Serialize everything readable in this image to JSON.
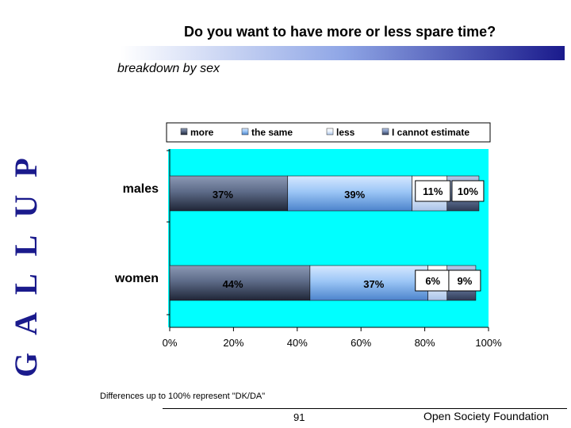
{
  "branding": {
    "vertical_logo": "GALLUP"
  },
  "slide": {
    "title": "Do you want to have more or less spare time?",
    "subtitle": "breakdown by sex",
    "note": "Differences up to 100% represent \"DK/DA\"",
    "page_number": "91",
    "organization": "Open Society Foundation"
  },
  "colors": {
    "plot_background": "#00ffff",
    "accent": "#1a1a8c",
    "more": "#3d4a63",
    "the_same": "#7fb2ec",
    "less": "#d8e6fb",
    "cannot_estimate": "#4d5f80"
  },
  "chart_data": {
    "type": "bar",
    "orientation": "horizontal",
    "stacked": true,
    "title": "Do you want to have more or less spare time?",
    "subtitle": "breakdown by sex",
    "categories": [
      "males",
      "women"
    ],
    "series": [
      {
        "name": "more",
        "values": [
          37,
          44
        ],
        "labels": [
          "37%",
          "44%"
        ]
      },
      {
        "name": "the same",
        "values": [
          39,
          37
        ],
        "labels": [
          "39%",
          "37%"
        ]
      },
      {
        "name": "less",
        "values": [
          11,
          6
        ],
        "labels": [
          "11%",
          "6%"
        ]
      },
      {
        "name": "I cannot estimate",
        "values": [
          10,
          9
        ],
        "labels": [
          "10%",
          "9%"
        ]
      }
    ],
    "xlim": [
      0,
      100
    ],
    "xticks": [
      0,
      20,
      40,
      60,
      80,
      100
    ],
    "xtick_labels": [
      "0%",
      "20%",
      "40%",
      "60%",
      "80%",
      "100%"
    ],
    "legend_position": "top"
  }
}
